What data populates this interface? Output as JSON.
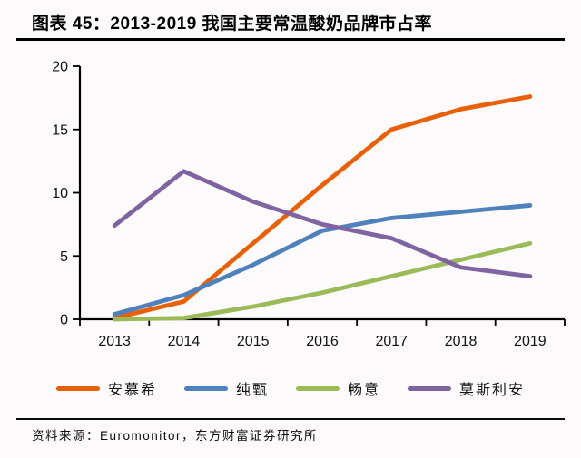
{
  "header": {
    "title": "图表 45：2013-2019 我国主要常温酸奶品牌市占率"
  },
  "footer": {
    "source": "资料来源：Euromonitor，东方财富证券研究所"
  },
  "colors": {
    "axis": "#000000",
    "title_text": "#000000",
    "background": "#fdfafc"
  },
  "chart_data": {
    "type": "line",
    "title": "2013-2019 我国主要常温酸奶品牌市占率",
    "categories": [
      "2013",
      "2014",
      "2015",
      "2016",
      "2017",
      "2018",
      "2019"
    ],
    "series": [
      {
        "key": "anmuxi",
        "name": "安慕希",
        "color": "#e86109",
        "values": [
          0.1,
          1.4,
          6.0,
          10.6,
          15.0,
          16.6,
          17.6
        ]
      },
      {
        "key": "chunzhen",
        "name": "纯甄",
        "color": "#4f81bd",
        "values": [
          0.4,
          1.9,
          4.3,
          7.0,
          8.0,
          8.5,
          9.0
        ]
      },
      {
        "key": "changyi",
        "name": "畅意",
        "color": "#9bbb59",
        "values": [
          0.0,
          0.1,
          1.0,
          2.1,
          3.4,
          4.7,
          6.0
        ]
      },
      {
        "key": "mosilian",
        "name": "莫斯利安",
        "color": "#8064a2",
        "values": [
          7.4,
          11.7,
          9.3,
          7.5,
          6.4,
          4.1,
          3.4
        ]
      }
    ],
    "xlabel": "",
    "ylabel": "",
    "ylim": [
      0,
      20
    ],
    "yticks": [
      0,
      5,
      10,
      15,
      20
    ],
    "grid": false,
    "legend_position": "bottom"
  }
}
